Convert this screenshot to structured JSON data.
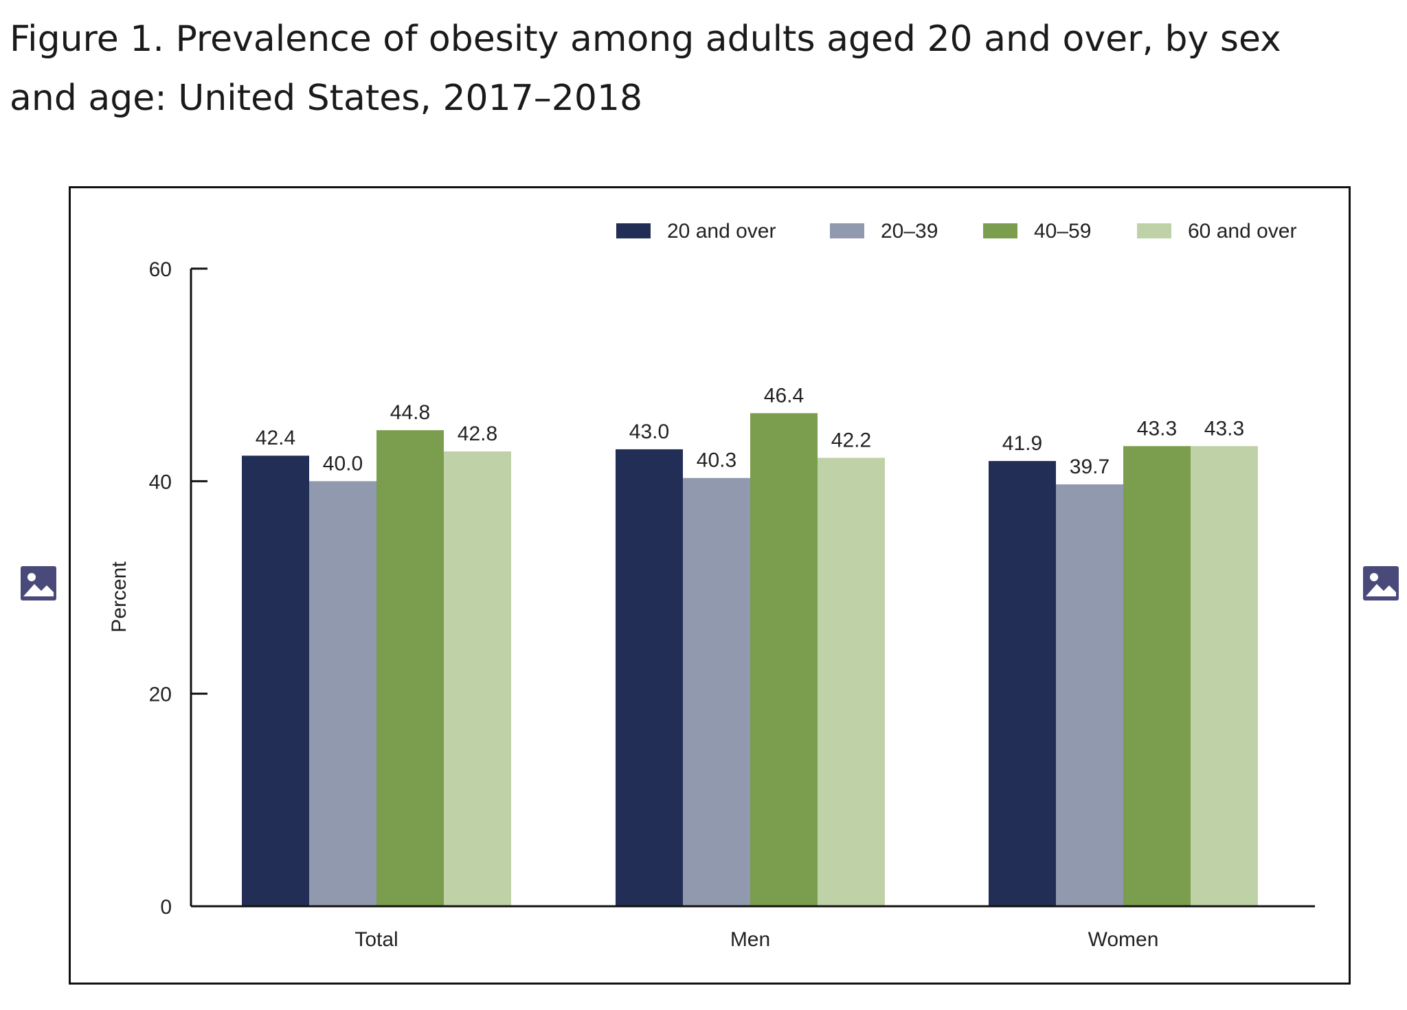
{
  "figure": {
    "title": "Figure 1. Prevalence of obesity among adults aged 20 and over, by sex and age: United States, 2017–2018"
  },
  "chart_data": {
    "type": "bar",
    "title": "",
    "xlabel": "",
    "ylabel": "Percent",
    "ylim": [
      0,
      60
    ],
    "yticks": [
      0,
      20,
      40,
      60
    ],
    "grid": false,
    "legend_position": "top-right",
    "categories": [
      "Total",
      "Men",
      "Women"
    ],
    "series": [
      {
        "name": "20 and over",
        "color": "#222e55",
        "values": [
          42.4,
          43.0,
          41.9
        ],
        "labels": [
          "42.4",
          "43.0",
          "41.9"
        ]
      },
      {
        "name": "20–39",
        "color": "#9099ae",
        "values": [
          40.0,
          40.3,
          39.7
        ],
        "labels": [
          "40.0",
          "40.3",
          "39.7"
        ]
      },
      {
        "name": "40–59",
        "color": "#7a9d4e",
        "values": [
          44.8,
          46.4,
          43.3
        ],
        "labels": [
          "44.8",
          "46.4",
          "43.3"
        ]
      },
      {
        "name": "60 and over",
        "color": "#bfd2a7",
        "values": [
          42.8,
          42.2,
          43.3
        ],
        "labels": [
          "42.8",
          "42.2",
          "43.3"
        ]
      }
    ]
  },
  "icons": {
    "previous": "image-icon",
    "next": "image-icon",
    "color": "#4a4a7a"
  }
}
